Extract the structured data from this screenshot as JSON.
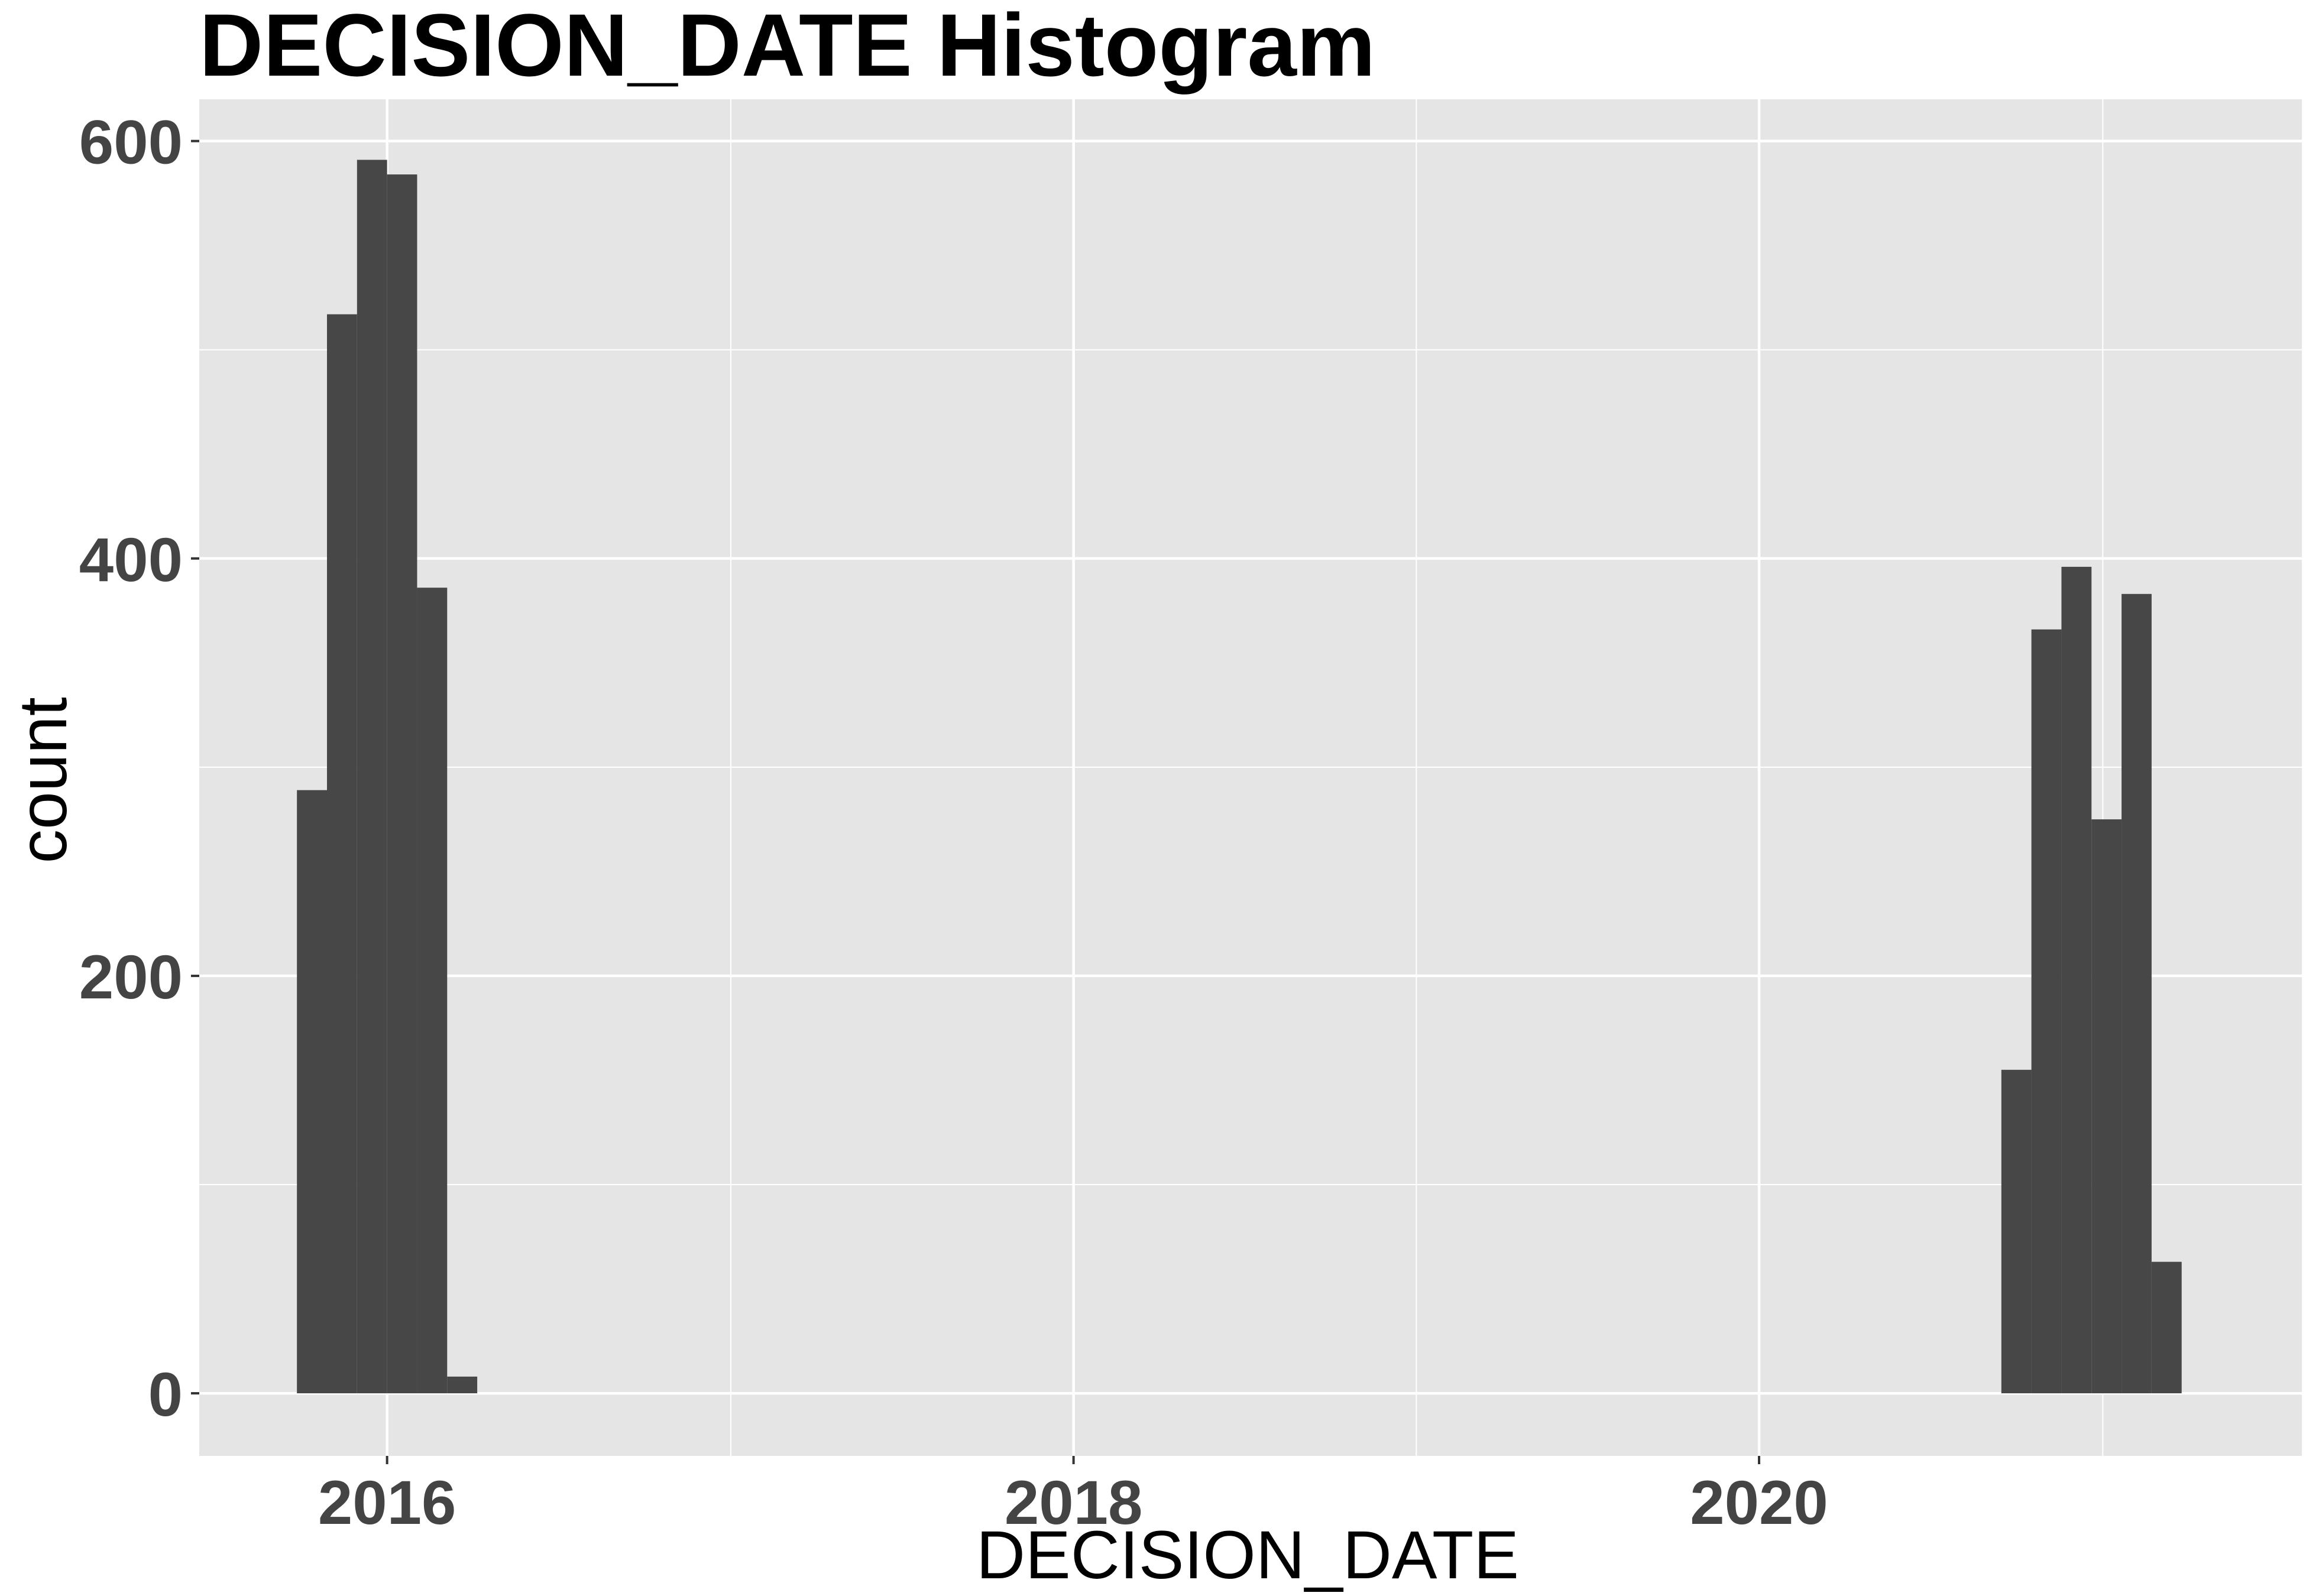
{
  "chart_data": {
    "type": "bar",
    "title": "DECISION_DATE Histogram",
    "xlabel": "DECISION_DATE",
    "ylabel": "count",
    "x_scale": "date",
    "xlim": [
      "2015-06-15",
      "2021-08-01"
    ],
    "ylim": [
      -30,
      620
    ],
    "x_ticks": [
      "2016",
      "2018",
      "2020"
    ],
    "x_tick_dates": [
      "2016-01-01",
      "2018-01-01",
      "2020-01-01"
    ],
    "y_ticks": [
      "0",
      "200",
      "400",
      "600"
    ],
    "y_tick_values": [
      0,
      200,
      400,
      600
    ],
    "y_minor_gridlines": [
      100,
      300,
      500
    ],
    "x_minor_gridlines": [
      "2017-01-01",
      "2019-01-01",
      "2021-01-01"
    ],
    "grid": true,
    "bins": [
      {
        "start": "2015-09-27",
        "end": "2015-10-29",
        "count": 289
      },
      {
        "start": "2015-10-29",
        "end": "2015-11-30",
        "count": 517
      },
      {
        "start": "2015-11-30",
        "end": "2016-01-01",
        "count": 591
      },
      {
        "start": "2016-01-01",
        "end": "2016-02-02",
        "count": 584
      },
      {
        "start": "2016-02-02",
        "end": "2016-03-05",
        "count": 386
      },
      {
        "start": "2016-03-05",
        "end": "2016-04-06",
        "count": 8
      },
      {
        "start": "2020-09-15",
        "end": "2020-10-17",
        "count": 155
      },
      {
        "start": "2020-10-17",
        "end": "2020-11-18",
        "count": 366
      },
      {
        "start": "2020-11-18",
        "end": "2020-12-20",
        "count": 396
      },
      {
        "start": "2020-12-20",
        "end": "2021-01-21",
        "count": 275
      },
      {
        "start": "2021-01-21",
        "end": "2021-02-22",
        "count": 383
      },
      {
        "start": "2021-02-22",
        "end": "2021-03-26",
        "count": 63
      }
    ]
  },
  "colors": {
    "panel_background": "#e5e5e5",
    "gridline": "#ffffff",
    "bar_fill": "#474747",
    "tick_label": "#444444",
    "text": "#000000"
  }
}
